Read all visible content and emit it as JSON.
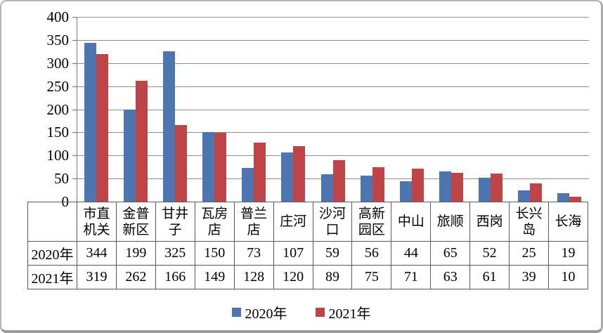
{
  "chart_data": {
    "type": "bar",
    "title": "",
    "xlabel": "",
    "ylabel": "",
    "ylim": [
      0,
      400
    ],
    "yticks": [
      0,
      50,
      100,
      150,
      200,
      250,
      300,
      350,
      400
    ],
    "grid": true,
    "legend_position": "bottom",
    "data_table_shown": true,
    "categories": [
      "市直机关",
      "金普新区",
      "甘井子",
      "瓦房店",
      "普兰店",
      "庄河",
      "沙河口",
      "高新园区",
      "中山",
      "旅顺",
      "西岗",
      "长兴岛",
      "长海"
    ],
    "category_lines": [
      [
        "市直",
        "机关"
      ],
      [
        "金普",
        "新区"
      ],
      [
        "甘井",
        "子"
      ],
      [
        "瓦房",
        "店"
      ],
      [
        "普兰",
        "店"
      ],
      [
        "庄河"
      ],
      [
        "沙河",
        "口"
      ],
      [
        "高新",
        "园区"
      ],
      [
        "中山"
      ],
      [
        "旅顺"
      ],
      [
        "西岗"
      ],
      [
        "长兴",
        "岛"
      ],
      [
        "长海"
      ]
    ],
    "series": [
      {
        "name": "2020年",
        "color": "#4d76b0",
        "values": [
          344,
          199,
          325,
          150,
          73,
          107,
          59,
          56,
          44,
          65,
          52,
          25,
          19
        ]
      },
      {
        "name": "2021年",
        "color": "#bf4447",
        "values": [
          319,
          262,
          166,
          149,
          128,
          120,
          89,
          75,
          71,
          63,
          61,
          39,
          10
        ]
      }
    ]
  },
  "colors": {
    "gridline": "#8f8f8f",
    "axis": "#767676",
    "table_border": "#5a5a5a",
    "frame_border": "#b6b6b6"
  }
}
